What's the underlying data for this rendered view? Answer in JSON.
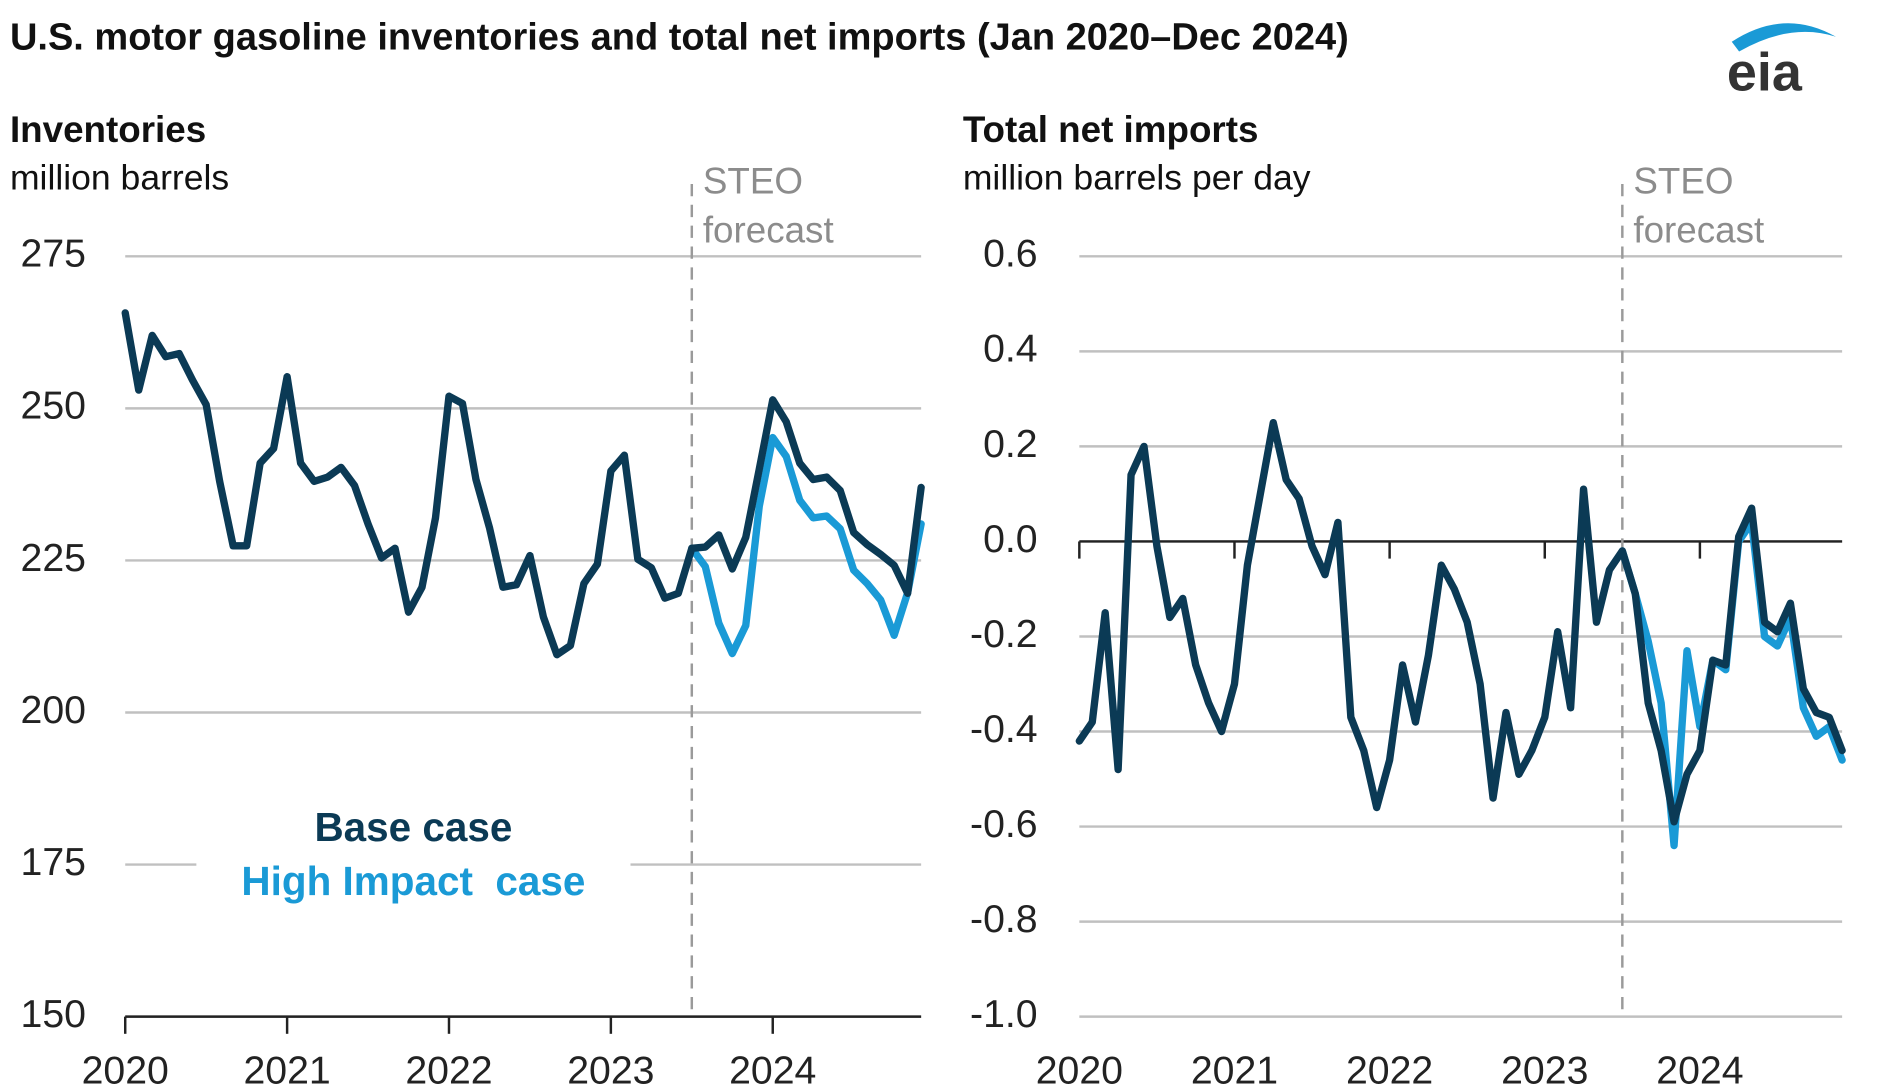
{
  "title": "U.S. motor gasoline inventories and total net imports (Jan 2020–Dec 2024)",
  "logo": "eia",
  "chart_data": [
    {
      "type": "line",
      "title": "Inventories",
      "subtitle": "million barrels",
      "annotation": [
        "STEO",
        "forecast"
      ],
      "categories": [
        "2020",
        null,
        null,
        null,
        null,
        null,
        null,
        null,
        null,
        null,
        null,
        null,
        "2021",
        null,
        null,
        null,
        null,
        null,
        null,
        null,
        null,
        null,
        null,
        null,
        "2022",
        null,
        null,
        null,
        null,
        null,
        null,
        null,
        null,
        null,
        null,
        null,
        "2023",
        null,
        null,
        null,
        null,
        null,
        null,
        null,
        null,
        null,
        null,
        null,
        "2024",
        null,
        null,
        null,
        null,
        null,
        null,
        null,
        null,
        null,
        null,
        null
      ],
      "series": [
        {
          "name": "Base case",
          "color": "#0b3a55",
          "values": [
            265.7,
            253,
            262,
            258.5,
            259,
            254.6,
            250.6,
            238,
            227.4,
            227.4,
            241,
            243.4,
            255.2,
            241,
            238,
            238.7,
            240.3,
            237.3,
            231,
            225.4,
            227,
            216.5,
            220.6,
            232,
            252,
            250.8,
            238.3,
            230.4,
            220.6,
            221,
            225.8,
            215.7,
            209.5,
            211,
            221.2,
            224.4,
            239.7,
            242.3,
            225.2,
            223.8,
            218.8,
            219.6,
            227,
            227.2,
            229.2,
            223.6,
            228.8,
            240,
            251.4,
            247.8,
            241,
            238.3,
            238.7,
            236.5,
            229.6,
            227.6,
            226,
            224.2,
            219.6,
            237
          ]
        },
        {
          "name": "High Impact  case",
          "color": "#1a9ad6",
          "values": [
            null,
            null,
            null,
            null,
            null,
            null,
            null,
            null,
            null,
            null,
            null,
            null,
            null,
            null,
            null,
            null,
            null,
            null,
            null,
            null,
            null,
            null,
            null,
            null,
            null,
            null,
            null,
            null,
            null,
            null,
            null,
            null,
            null,
            null,
            null,
            null,
            null,
            null,
            null,
            null,
            null,
            null,
            227,
            224,
            214.7,
            209.7,
            214.3,
            233.9,
            245.2,
            242.1,
            234.9,
            232,
            232.3,
            230.2,
            223.4,
            221.2,
            218.5,
            212.7,
            219.7,
            231
          ]
        }
      ],
      "ylim": [
        150,
        275
      ],
      "yticks": [
        150,
        175,
        200,
        225,
        250,
        275
      ],
      "grid": true,
      "legend": "lower-center"
    },
    {
      "type": "line",
      "title": "Total net imports",
      "subtitle": "million barrels per day",
      "annotation": [
        "STEO",
        "forecast"
      ],
      "categories": [
        "2020",
        null,
        null,
        null,
        null,
        null,
        null,
        null,
        null,
        null,
        null,
        null,
        "2021",
        null,
        null,
        null,
        null,
        null,
        null,
        null,
        null,
        null,
        null,
        null,
        "2022",
        null,
        null,
        null,
        null,
        null,
        null,
        null,
        null,
        null,
        null,
        null,
        "2023",
        null,
        null,
        null,
        null,
        null,
        null,
        null,
        null,
        null,
        null,
        null,
        "2024",
        null,
        null,
        null,
        null,
        null,
        null,
        null,
        null,
        null,
        null,
        null
      ],
      "series": [
        {
          "name": "Base case",
          "color": "#0b3a55",
          "values": [
            -0.42,
            -0.38,
            -0.15,
            -0.48,
            0.14,
            0.2,
            -0.01,
            -0.16,
            -0.12,
            -0.26,
            -0.34,
            -0.4,
            -0.3,
            -0.05,
            0.1,
            0.25,
            0.13,
            0.09,
            -0.01,
            -0.07,
            0.04,
            -0.37,
            -0.44,
            -0.56,
            -0.46,
            -0.26,
            -0.38,
            -0.24,
            -0.05,
            -0.1,
            -0.17,
            -0.3,
            -0.54,
            -0.36,
            -0.49,
            -0.44,
            -0.37,
            -0.19,
            -0.35,
            0.11,
            -0.17,
            -0.06,
            -0.02,
            -0.11,
            -0.34,
            -0.44,
            -0.59,
            -0.49,
            -0.44,
            -0.25,
            -0.26,
            0.01,
            0.07,
            -0.17,
            -0.19,
            -0.13,
            -0.31,
            -0.36,
            -0.37,
            -0.44
          ]
        },
        {
          "name": "High Impact  case",
          "color": "#1a9ad6",
          "values": [
            null,
            null,
            null,
            null,
            null,
            null,
            null,
            null,
            null,
            null,
            null,
            null,
            null,
            null,
            null,
            null,
            null,
            null,
            null,
            null,
            null,
            null,
            null,
            null,
            null,
            null,
            null,
            null,
            null,
            null,
            null,
            null,
            null,
            null,
            null,
            null,
            null,
            null,
            null,
            null,
            null,
            null,
            -0.02,
            -0.11,
            -0.21,
            -0.34,
            -0.64,
            -0.23,
            -0.39,
            -0.25,
            -0.27,
            0,
            0.04,
            -0.2,
            -0.22,
            -0.16,
            -0.35,
            -0.41,
            -0.39,
            -0.46
          ]
        }
      ],
      "ylim": [
        -1,
        0.6
      ],
      "yticks": [
        {
          "value": -1,
          "label": "-1.0"
        },
        -0.8,
        -0.6,
        -0.4,
        -0.2,
        {
          "value": 0,
          "label": "0.0"
        },
        0.2,
        0.4,
        0.6
      ],
      "grid": true,
      "legend": false
    }
  ]
}
